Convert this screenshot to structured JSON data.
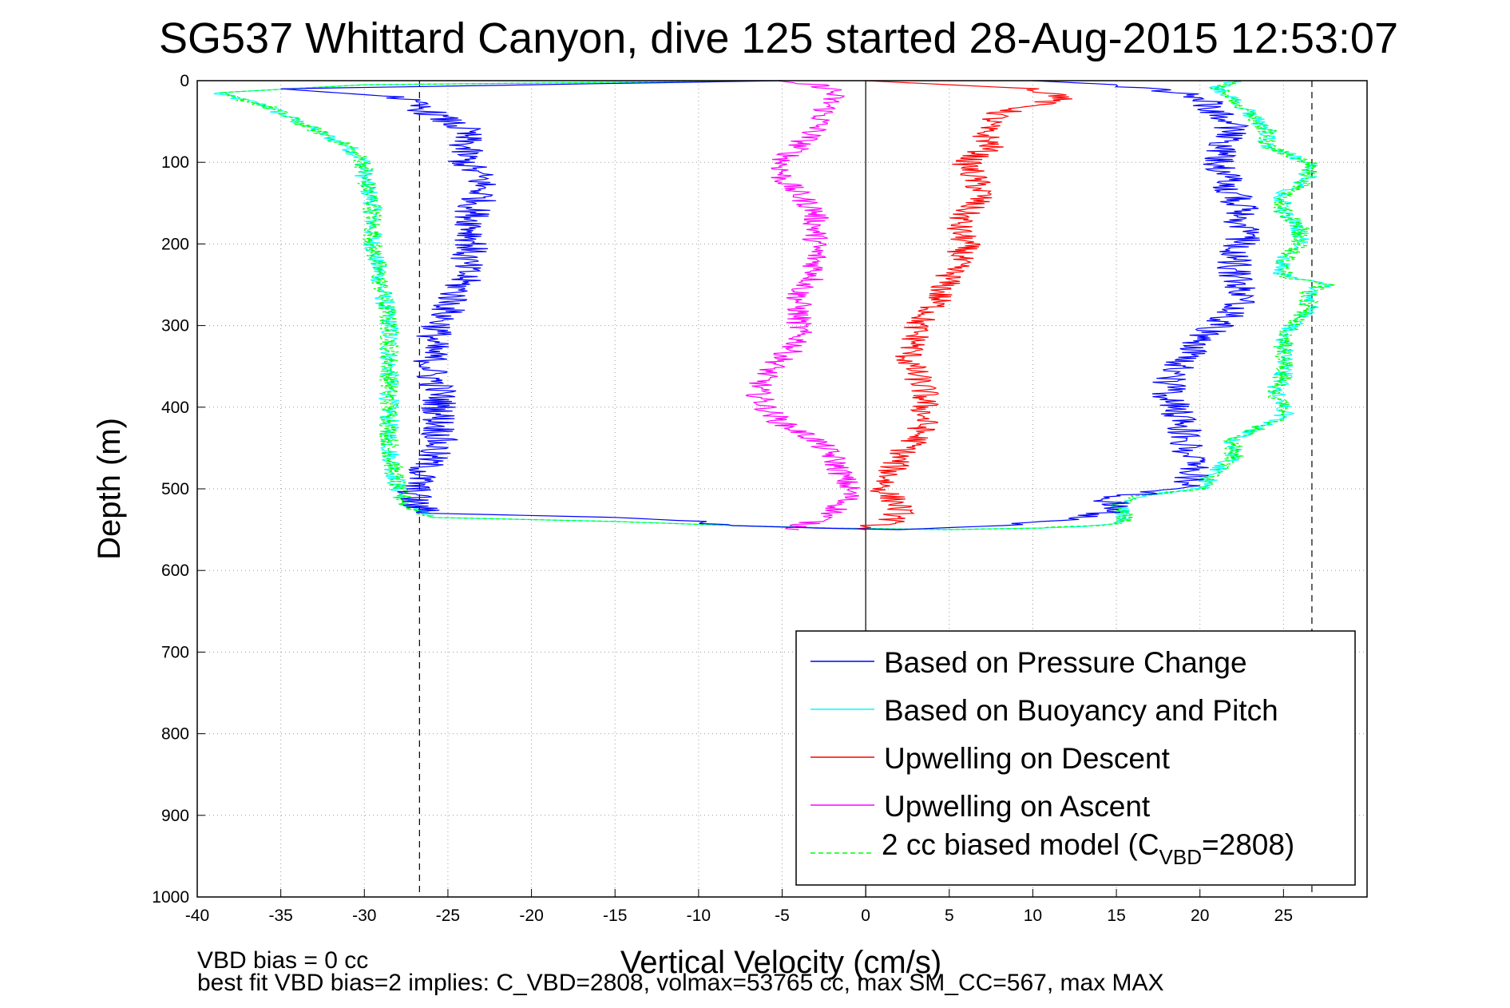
{
  "chart_data": {
    "type": "line",
    "title": "SG537 Whittard Canyon, dive 125 started 28-Aug-2015 12:53:07",
    "xlabel": "Vertical Velocity (cm/s)",
    "ylabel": "Depth (m)",
    "xlim": [
      -40,
      30
    ],
    "ylim": [
      0,
      1000
    ],
    "y_reversed": true,
    "grid": true,
    "legend_position": "lower-right",
    "xticks": [
      "-40",
      "-35",
      "-30",
      "-25",
      "-20",
      "-15",
      "-10",
      "-5",
      "0",
      "5",
      "10",
      "15",
      "20",
      "25"
    ],
    "yticks": [
      "0",
      "100",
      "200",
      "300",
      "400",
      "500",
      "600",
      "700",
      "800",
      "900",
      "1000"
    ],
    "reference_lines": [
      {
        "x": -26.7,
        "style": "dashed",
        "color": "#000000"
      },
      {
        "x": 0,
        "style": "solid",
        "color": "#000000"
      },
      {
        "x": 26.7,
        "style": "dashed",
        "color": "#000000"
      }
    ],
    "series": [
      {
        "name": "Based on Pressure Change",
        "color": "#0000ff",
        "depth": [
          0,
          5,
          10,
          20,
          40,
          60,
          80,
          100,
          120,
          140,
          160,
          180,
          200,
          220,
          240,
          260,
          280,
          300,
          320,
          340,
          360,
          380,
          400,
          420,
          440,
          460,
          480,
          500,
          510,
          520,
          530,
          535,
          540,
          545,
          548,
          550,
          545,
          540,
          535,
          530,
          525,
          520,
          515,
          510,
          500,
          490,
          480,
          460,
          440,
          420,
          400,
          380,
          360,
          340,
          320,
          300,
          280,
          260,
          240,
          220,
          200,
          180,
          160,
          140,
          120,
          100,
          80,
          60,
          40,
          20,
          10,
          5,
          0
        ],
        "velocity": [
          -5,
          -20,
          -35,
          -28,
          -26,
          -24,
          -24,
          -24,
          -23,
          -23,
          -23.5,
          -23.5,
          -23.5,
          -24,
          -24,
          -24.5,
          -25,
          -25.5,
          -26,
          -26,
          -26,
          -25.5,
          -25.5,
          -25.5,
          -25.5,
          -26,
          -26.5,
          -27,
          -27,
          -27,
          -26,
          -15,
          -10,
          -8,
          -3,
          2,
          8,
          11,
          13,
          14,
          15,
          15,
          14.5,
          15,
          19,
          19.5,
          19.5,
          19.5,
          19,
          19,
          18.5,
          18,
          18.5,
          19,
          20,
          21,
          22,
          22.5,
          22,
          22,
          22.5,
          22.5,
          22.5,
          22,
          21.5,
          21,
          21.5,
          22,
          21,
          20,
          17,
          15,
          10
        ]
      },
      {
        "name": "Based on Buoyancy and Pitch",
        "color": "#00ffff",
        "depth": [
          0,
          5,
          15,
          30,
          50,
          80,
          100,
          120,
          150,
          200,
          250,
          300,
          350,
          400,
          450,
          500,
          520,
          535,
          540,
          545,
          548,
          550,
          548,
          545,
          540,
          530,
          520,
          510,
          500,
          480,
          460,
          440,
          420,
          410,
          400,
          380,
          360,
          340,
          320,
          300,
          280,
          260,
          250,
          240,
          220,
          200,
          180,
          160,
          140,
          120,
          100,
          80,
          60,
          40,
          20,
          10,
          5,
          0
        ],
        "velocity": [
          -5,
          -30,
          -39,
          -36,
          -34,
          -31,
          -30,
          -30,
          -29.5,
          -29.5,
          -29,
          -28.5,
          -28.5,
          -28.5,
          -28.5,
          -28,
          -27.5,
          -26,
          -15,
          -8,
          -2,
          5,
          10,
          14,
          15.5,
          15.5,
          15,
          16,
          20,
          21,
          22,
          22,
          24,
          25,
          25,
          24.5,
          25,
          25,
          25,
          25.5,
          26.5,
          26.5,
          27.5,
          25,
          25,
          26,
          26,
          25,
          25,
          26.5,
          26.5,
          24,
          24,
          23,
          22,
          21,
          21.5,
          22
        ]
      },
      {
        "name": "Upwelling on Descent",
        "color": "#ff0000",
        "depth": [
          0,
          5,
          10,
          20,
          40,
          60,
          80,
          100,
          120,
          140,
          160,
          180,
          200,
          220,
          240,
          260,
          280,
          300,
          320,
          340,
          360,
          380,
          400,
          420,
          440,
          460,
          480,
          500,
          510,
          520,
          530,
          540,
          545,
          550
        ],
        "velocity": [
          0,
          5,
          10,
          12,
          8,
          7,
          7.5,
          6,
          6.5,
          7,
          6,
          5.5,
          6,
          5.5,
          5,
          4.5,
          4,
          3,
          3,
          2.5,
          3,
          3.5,
          3.5,
          3.5,
          3,
          2,
          1.5,
          1,
          1.5,
          2,
          2,
          1.5,
          0.5,
          0
        ]
      },
      {
        "name": "Upwelling on Ascent",
        "color": "#ff00ff",
        "depth": [
          0,
          5,
          10,
          20,
          40,
          60,
          80,
          100,
          120,
          140,
          160,
          180,
          200,
          220,
          240,
          260,
          280,
          300,
          320,
          340,
          360,
          380,
          400,
          420,
          440,
          460,
          480,
          500,
          510,
          520,
          530,
          540,
          545,
          550
        ],
        "velocity": [
          -6,
          -3,
          -2,
          -2,
          -2.5,
          -3,
          -4,
          -5,
          -5,
          -4,
          -3,
          -3,
          -3,
          -3,
          -3,
          -4,
          -4,
          -4,
          -4,
          -5,
          -6,
          -6.5,
          -6,
          -5,
          -3,
          -2,
          -1.5,
          -1,
          -1,
          -1.5,
          -2,
          -3,
          -4,
          -4
        ]
      },
      {
        "name": "2 cc biased model (C_VBD=2808)",
        "legend_label_main": "2 cc biased model (C",
        "legend_label_sub": "VBD",
        "legend_label_end": "=2808)",
        "color": "#00ff00",
        "style": "dashed",
        "depth": [
          0,
          5,
          15,
          30,
          50,
          80,
          100,
          120,
          150,
          200,
          250,
          300,
          350,
          400,
          450,
          500,
          520,
          535,
          540,
          545,
          548,
          550,
          548,
          545,
          540,
          530,
          520,
          510,
          500,
          480,
          460,
          440,
          420,
          410,
          400,
          380,
          360,
          340,
          320,
          300,
          280,
          260,
          250,
          240,
          220,
          200,
          180,
          160,
          140,
          120,
          100,
          80,
          60,
          40,
          20,
          10,
          5,
          0
        ],
        "velocity": [
          -5,
          -30,
          -39,
          -36,
          -34,
          -31,
          -30,
          -30,
          -29.5,
          -29.5,
          -29,
          -28.5,
          -28.5,
          -28.5,
          -28.5,
          -28,
          -27.5,
          -26,
          -15,
          -8,
          -2,
          5,
          10,
          14,
          15.5,
          15.5,
          15,
          16,
          20,
          21,
          22,
          22,
          24,
          25,
          25,
          24.5,
          25,
          25,
          25,
          25.5,
          26.5,
          26.5,
          27.5,
          25,
          25,
          26,
          26,
          25,
          25,
          26.5,
          26.5,
          24,
          24,
          23,
          22,
          21,
          21.5,
          22
        ]
      }
    ],
    "footnote_line1": "VBD bias = 0 cc",
    "footnote_line2": "best fit VBD bias=2 implies: C_VBD=2808, volmax=53765 cc, max SM_CC=567, max MAX"
  }
}
